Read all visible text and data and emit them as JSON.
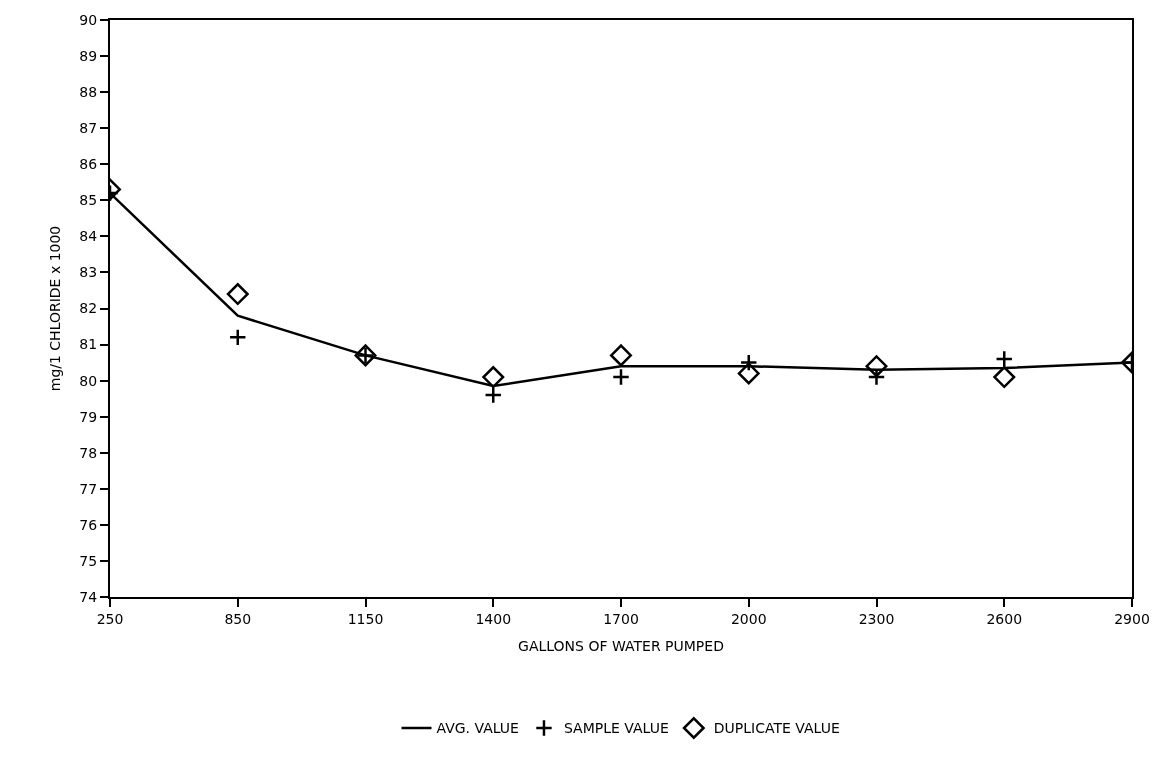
{
  "chart_data": {
    "type": "line",
    "xlabel": "GALLONS OF WATER PUMPED",
    "ylabel": "mg/1 CHLORIDE x 1000",
    "categories": [
      "250",
      "850",
      "1150",
      "1400",
      "1700",
      "2000",
      "2300",
      "2600",
      "2900"
    ],
    "series": [
      {
        "name": "AVG. VALUE",
        "color": "#000000",
        "marker": "none",
        "line_style": "solid",
        "values": [
          85.2,
          81.8,
          80.7,
          79.85,
          80.4,
          80.4,
          80.3,
          80.35,
          80.5
        ]
      },
      {
        "name": "SAMPLE VALUE",
        "type": "scatter",
        "color": "#000000",
        "marker": "cross",
        "values": [
          85.2,
          81.2,
          80.7,
          79.6,
          80.1,
          80.5,
          80.1,
          80.6,
          80.5
        ]
      },
      {
        "name": "DUPLICATE VALUE",
        "type": "scatter",
        "color": "#000000",
        "marker": "diamond",
        "values": [
          85.3,
          82.4,
          80.7,
          80.1,
          80.7,
          80.2,
          80.4,
          80.1,
          80.5
        ]
      }
    ],
    "ylim": [
      74,
      90
    ],
    "yticks": [
      74,
      75,
      76,
      77,
      78,
      79,
      80,
      81,
      82,
      83,
      84,
      85,
      86,
      87,
      88,
      89,
      90
    ],
    "grid": false,
    "legend": "bottom"
  }
}
